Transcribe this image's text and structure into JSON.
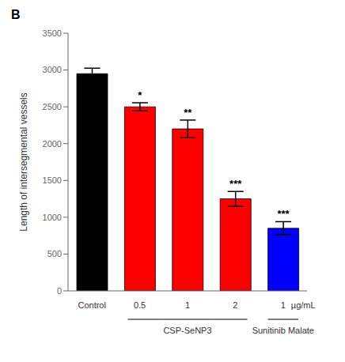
{
  "chart_data": {
    "type": "bar",
    "categories": [
      "Control",
      "0.5",
      "1",
      "2",
      "1"
    ],
    "values": [
      2950,
      2500,
      2200,
      1250,
      850
    ],
    "errors": [
      75,
      55,
      120,
      100,
      90
    ],
    "colors": [
      "#000000",
      "#ff0000",
      "#ff0000",
      "#ff0000",
      "#0000ff"
    ],
    "significance": [
      null,
      "*",
      "**",
      "***",
      "***"
    ],
    "ylabel": "Length of intersegmental vessels",
    "ylim": [
      0,
      3500
    ],
    "yticks": [
      0,
      500,
      1000,
      1500,
      2000,
      2500,
      3000,
      3500
    ],
    "group_labels": [
      "CSP-SeNP3",
      "Sunitinib Malate"
    ],
    "x_unit": "µg/mL",
    "panel_label": "B",
    "grid": false
  }
}
